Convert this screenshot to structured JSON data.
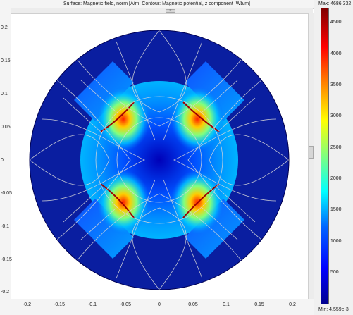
{
  "header": {
    "title": "Surface: Magnetic field, norm [A/m]  Contour: Magnetic potential, z component [Wb/m]"
  },
  "axes": {
    "y_ticks": [
      "0.2",
      "0.15",
      "0.1",
      "0.05",
      "0",
      "-0.05",
      "-0.1",
      "-0.15",
      "-0.2"
    ],
    "x_ticks": [
      "-0.2",
      "-0.15",
      "-0.1",
      "-0.05",
      "0",
      "0.05",
      "0.1",
      "0.15",
      "0.2"
    ]
  },
  "colorbar": {
    "max_label": "Max: 4686.332",
    "min_label": "Min: 4.559e-3",
    "ticks": [
      "4500",
      "4000",
      "3500",
      "3000",
      "2500",
      "2000",
      "1500",
      "1000",
      "500"
    ],
    "colors": [
      "#00008f",
      "#0000ff",
      "#0064ff",
      "#00ffff",
      "#7fff7f",
      "#ffff00",
      "#ff8000",
      "#ff0000",
      "#800000"
    ]
  },
  "scroll": {
    "h_thumb_glyph": "≡"
  }
}
